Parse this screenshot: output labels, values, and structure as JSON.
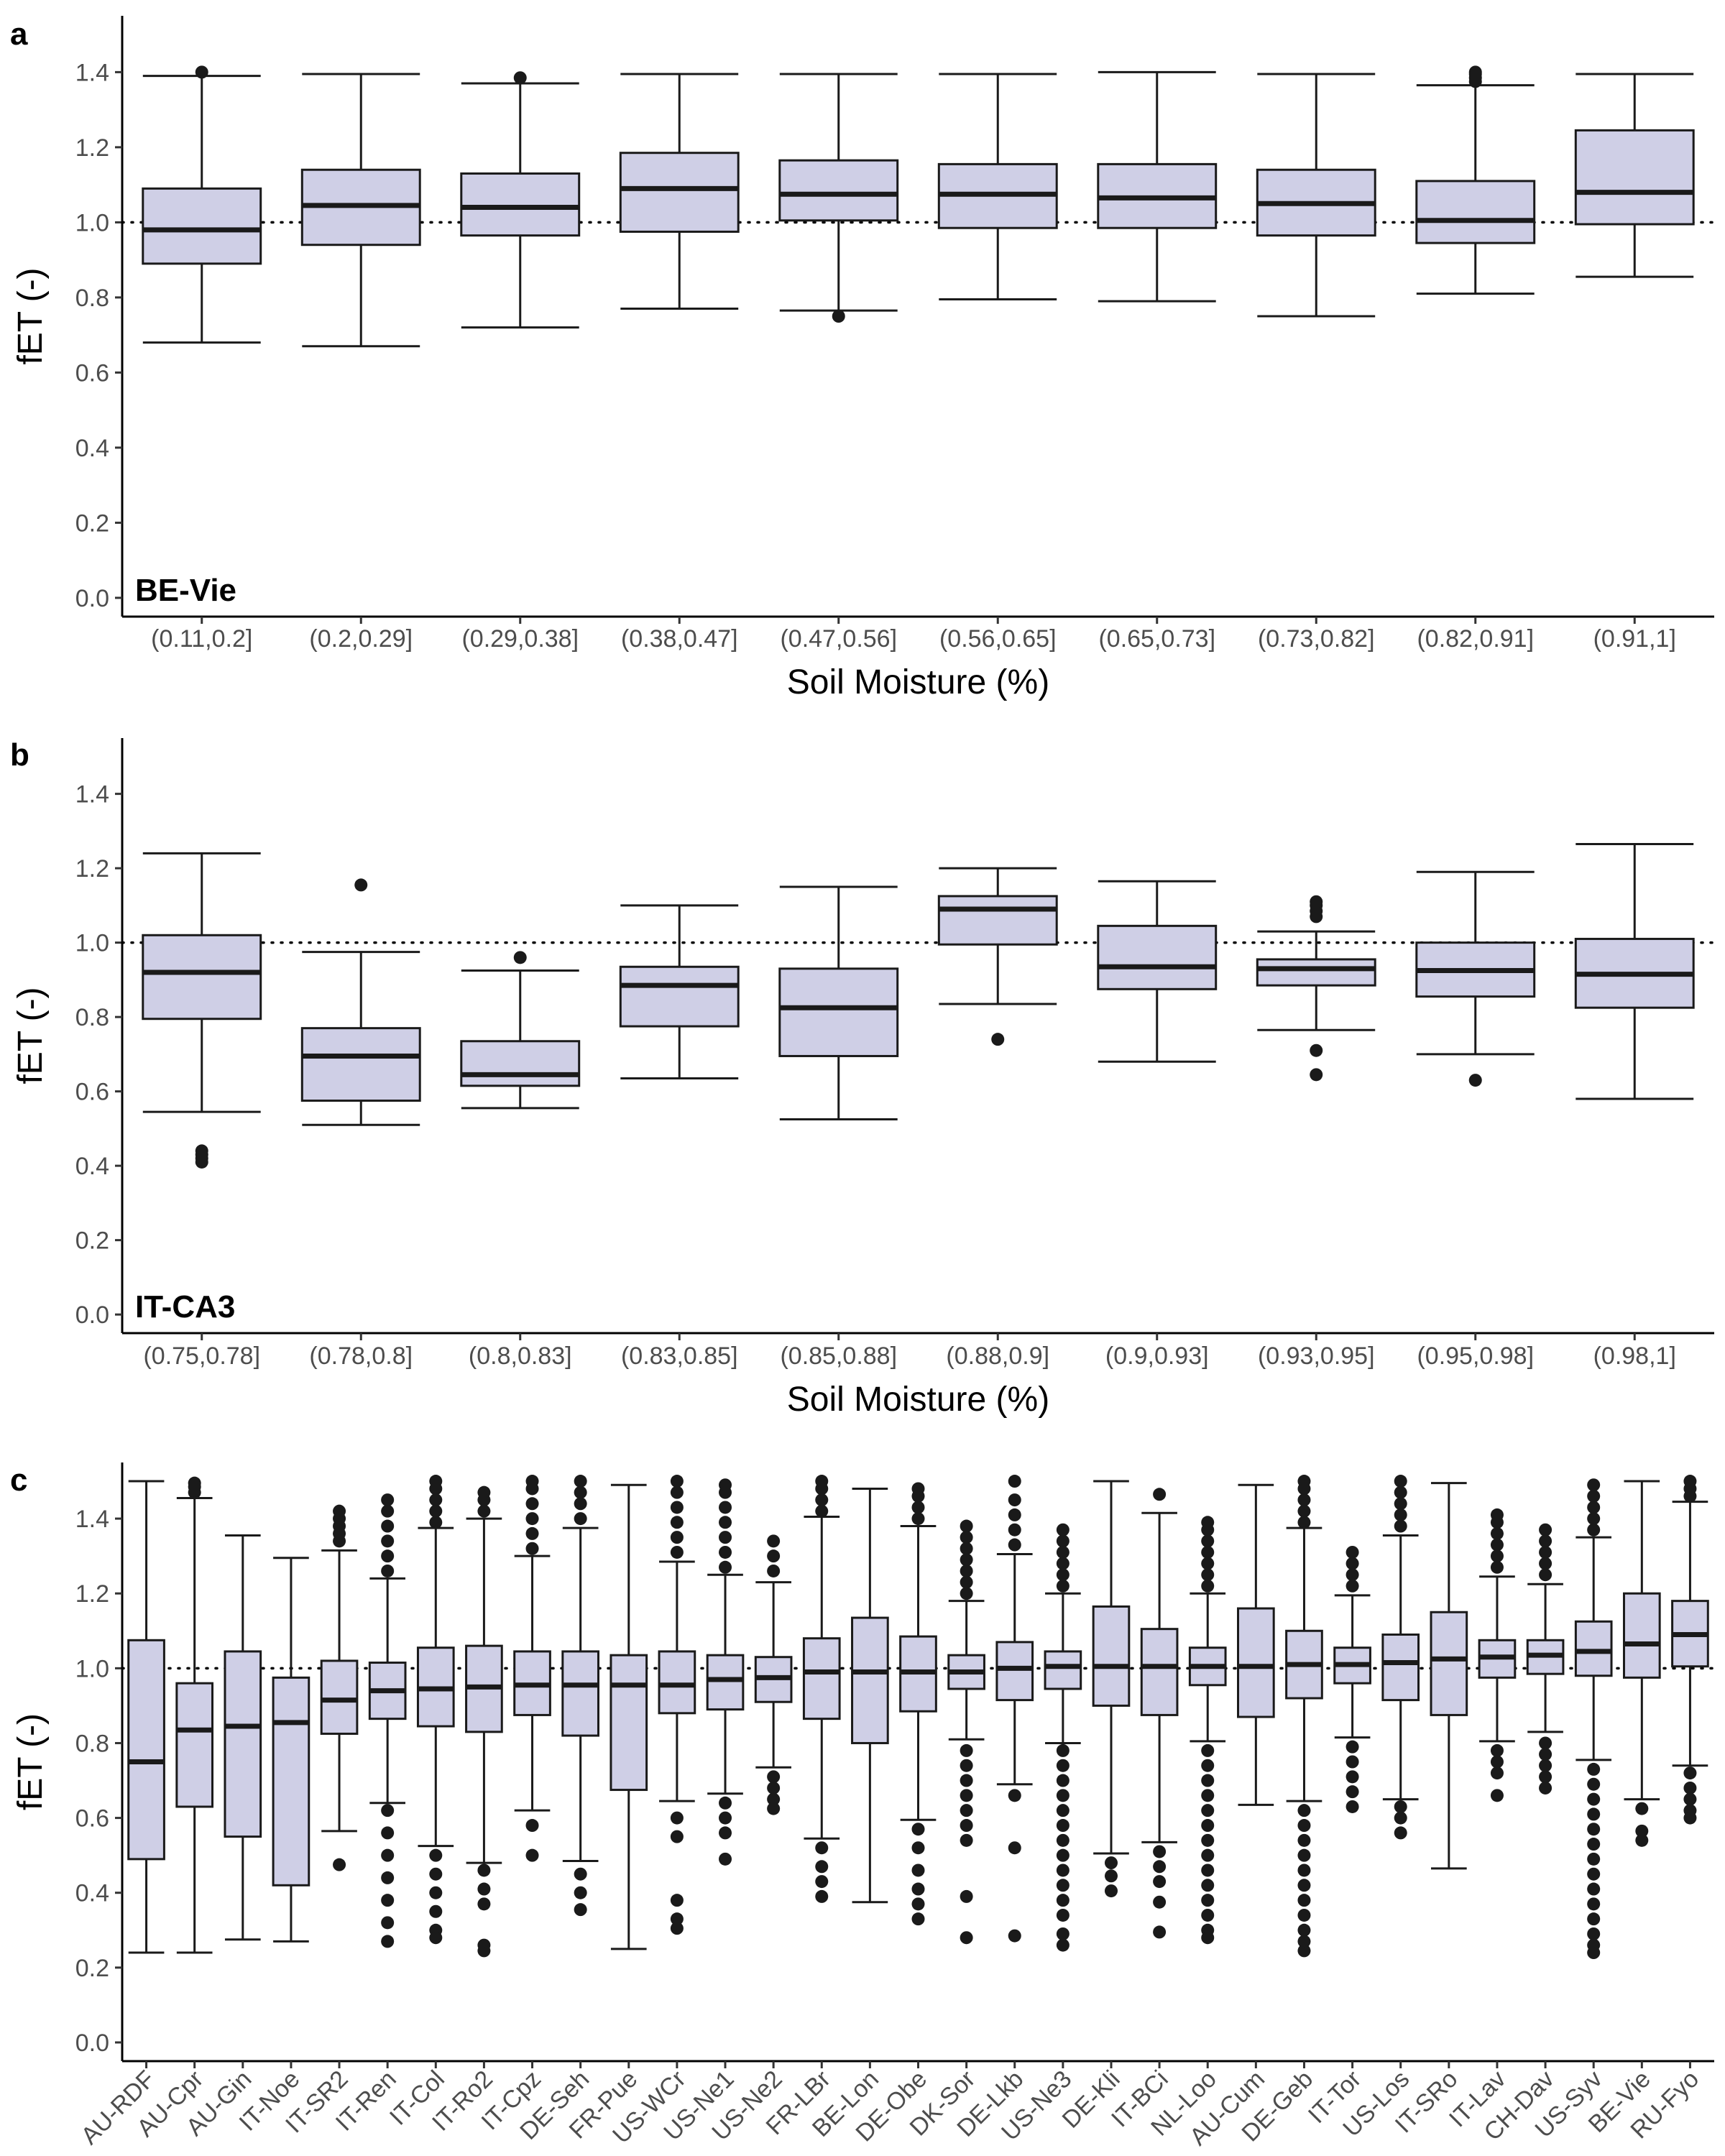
{
  "style": {
    "box_fill": "#cfcfe6",
    "stroke": "#1a1a1a",
    "tick_color": "#4d4d4d"
  },
  "chart_data": [
    {
      "type": "box",
      "panel_label": "a",
      "site_label": "BE-Vie",
      "xlabel": "Soil Moisture (%)",
      "ylabel": "fET (-)",
      "ylim": [
        -0.05,
        1.55
      ],
      "yticks": [
        "0.0",
        "0.2",
        "0.4",
        "0.6",
        "0.8",
        "1.0",
        "1.2",
        "1.4"
      ],
      "reference_line": 1.0,
      "grid": false,
      "categories": [
        "(0.11,0.2]",
        "(0.2,0.29]",
        "(0.29,0.38]",
        "(0.38,0.47]",
        "(0.47,0.56]",
        "(0.56,0.65]",
        "(0.65,0.73]",
        "(0.73,0.82]",
        "(0.82,0.91]",
        "(0.91,1]"
      ],
      "boxes": [
        {
          "q1": 0.89,
          "median": 0.98,
          "q3": 1.09,
          "whisker_low": 0.68,
          "whisker_high": 1.39,
          "outliers": [
            1.4
          ]
        },
        {
          "q1": 0.94,
          "median": 1.045,
          "q3": 1.14,
          "whisker_low": 0.67,
          "whisker_high": 1.395,
          "outliers": []
        },
        {
          "q1": 0.965,
          "median": 1.04,
          "q3": 1.13,
          "whisker_low": 0.72,
          "whisker_high": 1.37,
          "outliers": [
            1.385
          ]
        },
        {
          "q1": 0.975,
          "median": 1.09,
          "q3": 1.185,
          "whisker_low": 0.77,
          "whisker_high": 1.395,
          "outliers": []
        },
        {
          "q1": 1.005,
          "median": 1.075,
          "q3": 1.165,
          "whisker_low": 0.765,
          "whisker_high": 1.395,
          "outliers": [
            0.75
          ]
        },
        {
          "q1": 0.985,
          "median": 1.075,
          "q3": 1.155,
          "whisker_low": 0.795,
          "whisker_high": 1.395,
          "outliers": []
        },
        {
          "q1": 0.985,
          "median": 1.065,
          "q3": 1.155,
          "whisker_low": 0.79,
          "whisker_high": 1.4,
          "outliers": []
        },
        {
          "q1": 0.965,
          "median": 1.05,
          "q3": 1.14,
          "whisker_low": 0.75,
          "whisker_high": 1.395,
          "outliers": []
        },
        {
          "q1": 0.945,
          "median": 1.005,
          "q3": 1.11,
          "whisker_low": 0.81,
          "whisker_high": 1.365,
          "outliers": [
            1.375,
            1.385,
            1.395,
            1.4
          ]
        },
        {
          "q1": 0.995,
          "median": 1.08,
          "q3": 1.245,
          "whisker_low": 0.855,
          "whisker_high": 1.395,
          "outliers": []
        }
      ]
    },
    {
      "type": "box",
      "panel_label": "b",
      "site_label": "IT-CA3",
      "xlabel": "Soil Moisture (%)",
      "ylabel": "fET (-)",
      "ylim": [
        -0.05,
        1.55
      ],
      "yticks": [
        "0.0",
        "0.2",
        "0.4",
        "0.6",
        "0.8",
        "1.0",
        "1.2",
        "1.4"
      ],
      "reference_line": 1.0,
      "grid": false,
      "categories": [
        "(0.75,0.78]",
        "(0.78,0.8]",
        "(0.8,0.83]",
        "(0.83,0.85]",
        "(0.85,0.88]",
        "(0.88,0.9]",
        "(0.9,0.93]",
        "(0.93,0.95]",
        "(0.95,0.98]",
        "(0.98,1]"
      ],
      "boxes": [
        {
          "q1": 0.795,
          "median": 0.92,
          "q3": 1.02,
          "whisker_low": 0.545,
          "whisker_high": 1.24,
          "outliers": [
            0.41,
            0.42,
            0.43,
            0.44
          ]
        },
        {
          "q1": 0.575,
          "median": 0.695,
          "q3": 0.77,
          "whisker_low": 0.51,
          "whisker_high": 0.975,
          "outliers": [
            1.155
          ]
        },
        {
          "q1": 0.615,
          "median": 0.645,
          "q3": 0.735,
          "whisker_low": 0.555,
          "whisker_high": 0.925,
          "outliers": [
            0.96
          ]
        },
        {
          "q1": 0.775,
          "median": 0.885,
          "q3": 0.935,
          "whisker_low": 0.635,
          "whisker_high": 1.1,
          "outliers": []
        },
        {
          "q1": 0.695,
          "median": 0.825,
          "q3": 0.93,
          "whisker_low": 0.525,
          "whisker_high": 1.15,
          "outliers": []
        },
        {
          "q1": 0.995,
          "median": 1.09,
          "q3": 1.125,
          "whisker_low": 0.835,
          "whisker_high": 1.2,
          "outliers": [
            0.74
          ]
        },
        {
          "q1": 0.875,
          "median": 0.935,
          "q3": 1.045,
          "whisker_low": 0.68,
          "whisker_high": 1.165,
          "outliers": []
        },
        {
          "q1": 0.885,
          "median": 0.93,
          "q3": 0.955,
          "whisker_low": 0.765,
          "whisker_high": 1.03,
          "outliers": [
            1.07,
            1.085,
            1.1,
            1.11,
            0.71,
            0.645
          ]
        },
        {
          "q1": 0.855,
          "median": 0.925,
          "q3": 1.0,
          "whisker_low": 0.7,
          "whisker_high": 1.19,
          "outliers": [
            0.63
          ]
        },
        {
          "q1": 0.825,
          "median": 0.915,
          "q3": 1.01,
          "whisker_low": 0.58,
          "whisker_high": 1.265,
          "outliers": []
        }
      ]
    },
    {
      "type": "box",
      "panel_label": "c",
      "xlabel": "",
      "ylabel": "fET (-)",
      "ylim": [
        -0.05,
        1.55
      ],
      "yticks": [
        "0.0",
        "0.2",
        "0.4",
        "0.6",
        "0.8",
        "1.0",
        "1.2",
        "1.4"
      ],
      "reference_line": 1.0,
      "grid": false,
      "categories": [
        "AU-RDF",
        "AU-Cpr",
        "AU-Gin",
        "IT-Noe",
        "IT-SR2",
        "IT-Ren",
        "IT-Col",
        "IT-Ro2",
        "IT-Cpz",
        "DE-Seh",
        "FR-Pue",
        "US-WCr",
        "US-Ne1",
        "US-Ne2",
        "FR-LBr",
        "BE-Lon",
        "DE-Obe",
        "DK-Sor",
        "DE-Lkb",
        "US-Ne3",
        "DE-Kli",
        "IT-BCi",
        "NL-Loo",
        "AU-Cum",
        "DE-Geb",
        "IT-Tor",
        "US-Los",
        "IT-SRo",
        "IT-Lav",
        "CH-Dav",
        "US-Syv",
        "BE-Vie",
        "RU-Fyo"
      ],
      "boxes": [
        {
          "q1": 0.49,
          "median": 0.75,
          "q3": 1.075,
          "whisker_low": 0.24,
          "whisker_high": 1.5,
          "outliers": []
        },
        {
          "q1": 0.63,
          "median": 0.835,
          "q3": 0.96,
          "whisker_low": 0.24,
          "whisker_high": 1.455,
          "outliers": [
            1.47,
            1.485,
            1.495
          ]
        },
        {
          "q1": 0.55,
          "median": 0.845,
          "q3": 1.045,
          "whisker_low": 0.275,
          "whisker_high": 1.355,
          "outliers": []
        },
        {
          "q1": 0.42,
          "median": 0.855,
          "q3": 0.975,
          "whisker_low": 0.27,
          "whisker_high": 1.295,
          "outliers": []
        },
        {
          "q1": 0.825,
          "median": 0.915,
          "q3": 1.02,
          "whisker_low": 0.565,
          "whisker_high": 1.315,
          "outliers": [
            1.34,
            1.36,
            1.38,
            1.4,
            1.42,
            0.475
          ]
        },
        {
          "q1": 0.865,
          "median": 0.94,
          "q3": 1.015,
          "whisker_low": 0.64,
          "whisker_high": 1.24,
          "outliers": [
            1.26,
            1.3,
            1.34,
            1.38,
            1.42,
            1.45,
            0.62,
            0.56,
            0.5,
            0.44,
            0.38,
            0.32,
            0.27
          ]
        },
        {
          "q1": 0.845,
          "median": 0.945,
          "q3": 1.055,
          "whisker_low": 0.525,
          "whisker_high": 1.375,
          "outliers": [
            1.39,
            1.42,
            1.45,
            1.48,
            1.5,
            0.5,
            0.45,
            0.4,
            0.35,
            0.3,
            0.28
          ]
        },
        {
          "q1": 0.83,
          "median": 0.95,
          "q3": 1.06,
          "whisker_low": 0.48,
          "whisker_high": 1.4,
          "outliers": [
            1.42,
            1.45,
            1.47,
            0.46,
            0.41,
            0.37,
            0.26,
            0.245
          ]
        },
        {
          "q1": 0.875,
          "median": 0.955,
          "q3": 1.045,
          "whisker_low": 0.62,
          "whisker_high": 1.3,
          "outliers": [
            1.32,
            1.36,
            1.4,
            1.44,
            1.48,
            1.5,
            0.58,
            0.5
          ]
        },
        {
          "q1": 0.82,
          "median": 0.955,
          "q3": 1.045,
          "whisker_low": 0.485,
          "whisker_high": 1.375,
          "outliers": [
            1.4,
            1.44,
            1.47,
            1.5,
            0.45,
            0.4,
            0.355
          ]
        },
        {
          "q1": 0.675,
          "median": 0.955,
          "q3": 1.035,
          "whisker_low": 0.25,
          "whisker_high": 1.49,
          "outliers": []
        },
        {
          "q1": 0.88,
          "median": 0.955,
          "q3": 1.045,
          "whisker_low": 0.645,
          "whisker_high": 1.285,
          "outliers": [
            1.31,
            1.35,
            1.39,
            1.43,
            1.47,
            1.5,
            0.6,
            0.55,
            0.38,
            0.33,
            0.305
          ]
        },
        {
          "q1": 0.89,
          "median": 0.97,
          "q3": 1.035,
          "whisker_low": 0.665,
          "whisker_high": 1.25,
          "outliers": [
            1.27,
            1.31,
            1.35,
            1.39,
            1.43,
            1.47,
            1.49,
            0.64,
            0.6,
            0.56,
            0.49
          ]
        },
        {
          "q1": 0.91,
          "median": 0.975,
          "q3": 1.03,
          "whisker_low": 0.735,
          "whisker_high": 1.23,
          "outliers": [
            1.26,
            1.3,
            1.34,
            0.71,
            0.68,
            0.65,
            0.625
          ]
        },
        {
          "q1": 0.865,
          "median": 0.99,
          "q3": 1.08,
          "whisker_low": 0.545,
          "whisker_high": 1.405,
          "outliers": [
            1.42,
            1.45,
            1.48,
            1.5,
            0.52,
            0.47,
            0.43,
            0.39
          ]
        },
        {
          "q1": 0.8,
          "median": 0.99,
          "q3": 1.135,
          "whisker_low": 0.375,
          "whisker_high": 1.48,
          "outliers": []
        },
        {
          "q1": 0.885,
          "median": 0.99,
          "q3": 1.085,
          "whisker_low": 0.595,
          "whisker_high": 1.38,
          "outliers": [
            1.4,
            1.43,
            1.46,
            1.48,
            0.57,
            0.52,
            0.46,
            0.41,
            0.37,
            0.33
          ]
        },
        {
          "q1": 0.945,
          "median": 0.99,
          "q3": 1.035,
          "whisker_low": 0.81,
          "whisker_high": 1.18,
          "outliers": [
            1.2,
            1.23,
            1.26,
            1.29,
            1.32,
            1.35,
            1.38,
            0.78,
            0.74,
            0.7,
            0.66,
            0.62,
            0.58,
            0.54,
            0.39,
            0.28
          ]
        },
        {
          "q1": 0.915,
          "median": 1.0,
          "q3": 1.07,
          "whisker_low": 0.69,
          "whisker_high": 1.305,
          "outliers": [
            1.33,
            1.37,
            1.41,
            1.45,
            1.5,
            0.66,
            0.52,
            0.285
          ]
        },
        {
          "q1": 0.945,
          "median": 1.005,
          "q3": 1.045,
          "whisker_low": 0.8,
          "whisker_high": 1.2,
          "outliers": [
            1.22,
            1.25,
            1.28,
            1.31,
            1.34,
            1.37,
            0.78,
            0.74,
            0.7,
            0.66,
            0.62,
            0.58,
            0.54,
            0.5,
            0.46,
            0.42,
            0.38,
            0.34,
            0.29,
            0.26
          ]
        },
        {
          "q1": 0.9,
          "median": 1.005,
          "q3": 1.165,
          "whisker_low": 0.505,
          "whisker_high": 1.5,
          "outliers": [
            0.48,
            0.445,
            0.405
          ]
        },
        {
          "q1": 0.875,
          "median": 1.005,
          "q3": 1.105,
          "whisker_low": 0.535,
          "whisker_high": 1.415,
          "outliers": [
            1.465,
            0.51,
            0.47,
            0.43,
            0.375,
            0.295
          ]
        },
        {
          "q1": 0.955,
          "median": 1.005,
          "q3": 1.055,
          "whisker_low": 0.805,
          "whisker_high": 1.2,
          "outliers": [
            1.22,
            1.25,
            1.28,
            1.31,
            1.34,
            1.37,
            1.39,
            0.78,
            0.74,
            0.7,
            0.66,
            0.62,
            0.58,
            0.54,
            0.5,
            0.46,
            0.42,
            0.38,
            0.34,
            0.3,
            0.28
          ]
        },
        {
          "q1": 0.87,
          "median": 1.005,
          "q3": 1.16,
          "whisker_low": 0.635,
          "whisker_high": 1.49,
          "outliers": []
        },
        {
          "q1": 0.92,
          "median": 1.01,
          "q3": 1.1,
          "whisker_low": 0.645,
          "whisker_high": 1.375,
          "outliers": [
            1.39,
            1.42,
            1.45,
            1.48,
            1.5,
            0.62,
            0.58,
            0.54,
            0.5,
            0.46,
            0.42,
            0.38,
            0.34,
            0.3,
            0.27,
            0.245
          ]
        },
        {
          "q1": 0.96,
          "median": 1.01,
          "q3": 1.055,
          "whisker_low": 0.815,
          "whisker_high": 1.195,
          "outliers": [
            1.22,
            1.25,
            1.28,
            1.31,
            0.79,
            0.75,
            0.71,
            0.67,
            0.63
          ]
        },
        {
          "q1": 0.915,
          "median": 1.015,
          "q3": 1.09,
          "whisker_low": 0.65,
          "whisker_high": 1.355,
          "outliers": [
            1.38,
            1.41,
            1.44,
            1.47,
            1.5,
            0.63,
            0.6,
            0.56
          ]
        },
        {
          "q1": 0.875,
          "median": 1.025,
          "q3": 1.15,
          "whisker_low": 0.465,
          "whisker_high": 1.495,
          "outliers": []
        },
        {
          "q1": 0.975,
          "median": 1.03,
          "q3": 1.075,
          "whisker_low": 0.805,
          "whisker_high": 1.245,
          "outliers": [
            1.27,
            1.3,
            1.33,
            1.36,
            1.39,
            1.41,
            0.78,
            0.75,
            0.72,
            0.66
          ]
        },
        {
          "q1": 0.985,
          "median": 1.035,
          "q3": 1.075,
          "whisker_low": 0.83,
          "whisker_high": 1.225,
          "outliers": [
            1.25,
            1.28,
            1.31,
            1.34,
            1.37,
            0.8,
            0.77,
            0.74,
            0.71,
            0.68
          ]
        },
        {
          "q1": 0.98,
          "median": 1.045,
          "q3": 1.125,
          "whisker_low": 0.755,
          "whisker_high": 1.35,
          "outliers": [
            1.37,
            1.4,
            1.43,
            1.46,
            1.49,
            0.73,
            0.69,
            0.65,
            0.61,
            0.57,
            0.53,
            0.49,
            0.45,
            0.41,
            0.37,
            0.33,
            0.29,
            0.26,
            0.24
          ]
        },
        {
          "q1": 0.975,
          "median": 1.065,
          "q3": 1.2,
          "whisker_low": 0.65,
          "whisker_high": 1.5,
          "outliers": [
            0.625,
            0.565,
            0.54
          ]
        },
        {
          "q1": 1.005,
          "median": 1.09,
          "q3": 1.18,
          "whisker_low": 0.74,
          "whisker_high": 1.445,
          "outliers": [
            1.46,
            1.48,
            1.5,
            0.72,
            0.68,
            0.65,
            0.62,
            0.6
          ]
        }
      ]
    }
  ]
}
